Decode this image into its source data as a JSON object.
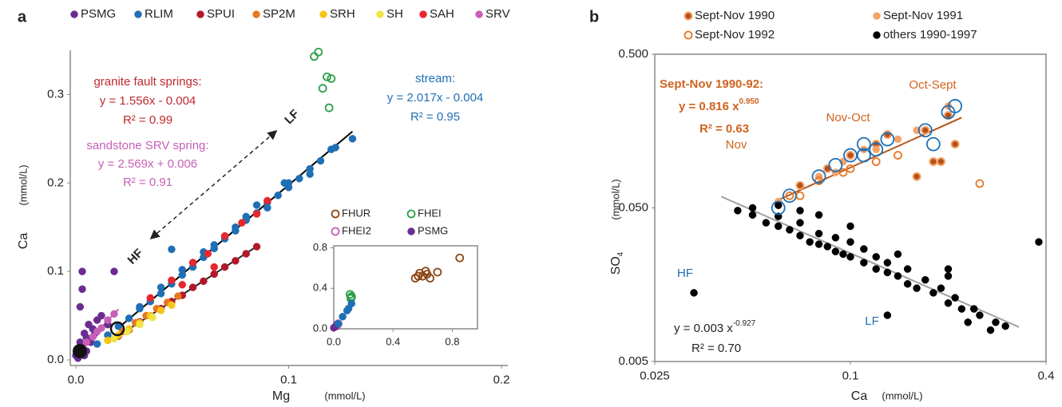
{
  "chart_data": [
    {
      "type": "scatter",
      "panel": "a",
      "x_label": "Mg",
      "x_unit": "(mmol/L)",
      "y_label": "Ca",
      "y_unit": "(mmol/L)",
      "xlim": [
        0,
        0.2
      ],
      "ylim": [
        0,
        0.35
      ],
      "xticks": [
        {
          "value": 0,
          "label": "0.0"
        },
        0.1,
        0.2
      ],
      "yticks": [
        {
          "value": 0,
          "label": "0.0"
        },
        0.1,
        0.2,
        0.3
      ],
      "series": [
        {
          "name": "PSMG",
          "color": "#6a2c91",
          "marker": "filled",
          "x": [
            0,
            0.001,
            0.002,
            0.003,
            0.004,
            0.005,
            0.006,
            0.008,
            0.01,
            0.012,
            0.002,
            0.003,
            0.001,
            0.005,
            0.007,
            0.004,
            0.009,
            0.015,
            0.018,
            0.003
          ],
          "values": [
            0.005,
            0.01,
            0.02,
            0.015,
            0.03,
            0.025,
            0.04,
            0.035,
            0.045,
            0.05,
            0.06,
            0.08,
            0.002,
            0.01,
            0.02,
            0.005,
            0.03,
            0.04,
            0.1,
            0.1
          ]
        },
        {
          "name": "RLIM",
          "color": "#1f6fb5",
          "marker": "filled",
          "x": [
            0.01,
            0.015,
            0.02,
            0.025,
            0.03,
            0.035,
            0.04,
            0.045,
            0.05,
            0.055,
            0.06,
            0.065,
            0.07,
            0.075,
            0.08,
            0.085,
            0.09,
            0.095,
            0.1,
            0.105,
            0.11,
            0.115,
            0.12,
            0.13,
            0.04,
            0.05,
            0.06,
            0.07,
            0.08,
            0.09,
            0.1,
            0.11,
            0.045,
            0.065,
            0.03,
            0.085,
            0.098,
            0.075,
            0.055,
            0.122
          ],
          "values": [
            0.018,
            0.028,
            0.038,
            0.047,
            0.058,
            0.066,
            0.075,
            0.086,
            0.096,
            0.105,
            0.116,
            0.126,
            0.137,
            0.146,
            0.158,
            0.166,
            0.178,
            0.186,
            0.195,
            0.205,
            0.216,
            0.225,
            0.238,
            0.25,
            0.082,
            0.102,
            0.122,
            0.14,
            0.162,
            0.172,
            0.2,
            0.21,
            0.125,
            0.13,
            0.06,
            0.175,
            0.2,
            0.15,
            0.11,
            0.24
          ]
        },
        {
          "name": "SPUI",
          "color": "#b2182b",
          "marker": "filled",
          "x": [
            0.02,
            0.025,
            0.03,
            0.035,
            0.04,
            0.045,
            0.05,
            0.055,
            0.06,
            0.065,
            0.07,
            0.075,
            0.08,
            0.085
          ],
          "values": [
            0.027,
            0.034,
            0.043,
            0.05,
            0.058,
            0.066,
            0.073,
            0.082,
            0.089,
            0.097,
            0.105,
            0.112,
            0.12,
            0.128
          ]
        },
        {
          "name": "SP2M",
          "color": "#e87722",
          "marker": "filled",
          "x": [
            0.022,
            0.028,
            0.033,
            0.038,
            0.043,
            0.048
          ],
          "values": [
            0.032,
            0.042,
            0.05,
            0.058,
            0.065,
            0.072
          ]
        },
        {
          "name": "SRH",
          "color": "#f5c518",
          "marker": "filled",
          "x": [
            0.015,
            0.02,
            0.025,
            0.03,
            0.035,
            0.04,
            0.045
          ],
          "values": [
            0.022,
            0.028,
            0.035,
            0.042,
            0.05,
            0.056,
            0.062
          ]
        },
        {
          "name": "SH",
          "color": "#f0e442",
          "marker": "filled",
          "x": [
            0.018,
            0.024,
            0.03,
            0.036
          ],
          "values": [
            0.024,
            0.032,
            0.04,
            0.048
          ]
        },
        {
          "name": "SAH",
          "color": "#e8262d",
          "marker": "filled",
          "x": [
            0.035,
            0.045,
            0.055,
            0.062,
            0.07,
            0.078,
            0.085,
            0.09,
            0.05,
            0.065
          ],
          "values": [
            0.07,
            0.09,
            0.11,
            0.12,
            0.14,
            0.155,
            0.165,
            0.18,
            0.085,
            0.105
          ]
        },
        {
          "name": "SRV",
          "color": "#c75fb6",
          "marker": "filled",
          "x": [
            0.005,
            0.008,
            0.01,
            0.012,
            0.015,
            0.018
          ],
          "values": [
            0.02,
            0.026,
            0.032,
            0.036,
            0.045,
            0.052
          ]
        },
        {
          "color": "#2e9e47",
          "marker": "open",
          "x": [
            0.112,
            0.114,
            0.116,
            0.118,
            0.12,
            0.119
          ],
          "values": [
            0.343,
            0.348,
            0.307,
            0.32,
            0.318,
            0.285
          ]
        }
      ],
      "fits": [
        {
          "kind": "linear",
          "slope": 2.017,
          "intercept": -0.004,
          "x": [
            0.02,
            0.13
          ],
          "color": "#000000"
        },
        {
          "kind": "linear",
          "slope": 1.556,
          "intercept": -0.004,
          "x": [
            0.02,
            0.085
          ],
          "color": "#222222"
        },
        {
          "kind": "linear",
          "slope": 2.569,
          "intercept": 0.006,
          "x": [
            0.005,
            0.02
          ],
          "color": "#c75fb6"
        }
      ],
      "annotations": [
        "granite fault springs:",
        "y = 1.556x - 0.004",
        "R² = 0.99",
        "stream:",
        "y = 2.017x - 0.004",
        "R² = 0.95",
        "sandstone SRV spring:",
        "y = 2.569x + 0.006",
        "R² = 0.91",
        "LF",
        "HF"
      ]
    },
    {
      "type": "scatter",
      "inset": true,
      "xlim": [
        0,
        0.97
      ],
      "ylim": [
        0,
        0.82
      ],
      "xticks": [
        {
          "value": 0,
          "label": "0.0"
        },
        0.4,
        0.8
      ],
      "yticks": [
        {
          "value": 0,
          "label": "0.0"
        },
        0.4,
        0.8
      ],
      "series": [
        {
          "name": "FHUR",
          "color": "#8b4513",
          "marker": "open",
          "x": [
            0.55,
            0.58,
            0.6,
            0.62,
            0.65,
            0.7,
            0.85,
            0.57,
            0.63
          ],
          "values": [
            0.5,
            0.55,
            0.52,
            0.57,
            0.5,
            0.56,
            0.7,
            0.52,
            0.54
          ]
        },
        {
          "name": "FHEI",
          "color": "#2e9e47",
          "marker": "open",
          "x": [
            0.11,
            0.12,
            0.115,
            0.12
          ],
          "values": [
            0.34,
            0.32,
            0.3,
            0.31
          ]
        },
        {
          "name": "FHEI2",
          "color": "#c75fb6",
          "marker": "open",
          "x": [
            0.02,
            0.03
          ],
          "values": [
            0.03,
            0.05
          ]
        },
        {
          "name": "PSMG",
          "color": "#6a2c91",
          "marker": "filled",
          "x": [
            0,
            0.01,
            0.02
          ],
          "values": [
            0.01,
            0.02,
            0.04
          ]
        },
        {
          "color": "#1f6fb5",
          "marker": "filled",
          "x": [
            0.03,
            0.06,
            0.09,
            0.12,
            0.1
          ],
          "values": [
            0.05,
            0.12,
            0.18,
            0.25,
            0.2
          ]
        }
      ]
    },
    {
      "type": "scatter",
      "panel": "b",
      "log_x": true,
      "log_y": true,
      "x_label": "Ca",
      "x_unit": "(mmol/L)",
      "y_label": "SO",
      "y_label_sub": "4",
      "y_unit": "(mmol/L)",
      "xlim": [
        0.025,
        0.4
      ],
      "ylim": [
        0.005,
        0.5
      ],
      "xticks": [
        0.025,
        0.1,
        0.4
      ],
      "yticks": [
        0.005,
        {
          "value": 0.05,
          "label": "0.050"
        },
        {
          "value": 0.5,
          "label": "0.500"
        }
      ],
      "series": [
        {
          "name": "Sept-Nov 1990",
          "color": "#b5501a",
          "marker": "filled-ringed",
          "x": [
            0.07,
            0.085,
            0.1,
            0.12,
            0.13,
            0.17,
            0.2,
            0.21,
            0.18,
            0.19,
            0.16
          ],
          "values": [
            0.07,
            0.09,
            0.11,
            0.13,
            0.15,
            0.16,
            0.2,
            0.13,
            0.1,
            0.1,
            0.08
          ]
        },
        {
          "name": "Sept-Nov 1991",
          "color": "#f4a46a",
          "marker": "filled",
          "x": [
            0.06,
            0.08,
            0.095,
            0.11,
            0.12,
            0.14,
            0.16,
            0.2,
            0.09
          ],
          "values": [
            0.055,
            0.08,
            0.1,
            0.12,
            0.12,
            0.14,
            0.16,
            0.23,
            0.085
          ]
        },
        {
          "name": "Sept-Nov 1992",
          "color": "#e87722",
          "marker": "open",
          "x": [
            0.065,
            0.07,
            0.08,
            0.1,
            0.12,
            0.14,
            0.25,
            0.095
          ],
          "values": [
            0.06,
            0.06,
            0.075,
            0.09,
            0.1,
            0.11,
            0.072,
            0.085
          ]
        },
        {
          "name": "others 1990-1997",
          "color": "#000000",
          "marker": "filled",
          "x": [
            0.045,
            0.05,
            0.055,
            0.06,
            0.065,
            0.07,
            0.075,
            0.08,
            0.085,
            0.09,
            0.095,
            0.1,
            0.11,
            0.12,
            0.13,
            0.14,
            0.15,
            0.16,
            0.18,
            0.2,
            0.22,
            0.25,
            0.28,
            0.3,
            0.05,
            0.06,
            0.07,
            0.08,
            0.09,
            0.1,
            0.11,
            0.12,
            0.13,
            0.15,
            0.17,
            0.19,
            0.21,
            0.24,
            0.06,
            0.07,
            0.08,
            0.1,
            0.14,
            0.2,
            0.033,
            0.38,
            0.13,
            0.2,
            0.23,
            0.27
          ],
          "values": [
            0.048,
            0.045,
            0.04,
            0.038,
            0.036,
            0.033,
            0.03,
            0.029,
            0.028,
            0.026,
            0.025,
            0.024,
            0.022,
            0.02,
            0.019,
            0.018,
            0.016,
            0.015,
            0.014,
            0.012,
            0.011,
            0.01,
            0.009,
            0.0085,
            0.05,
            0.044,
            0.04,
            0.034,
            0.032,
            0.03,
            0.027,
            0.024,
            0.022,
            0.02,
            0.017,
            0.015,
            0.013,
            0.011,
            0.052,
            0.048,
            0.045,
            0.038,
            0.025,
            0.018,
            0.014,
            0.03,
            0.01,
            0.02,
            0.009,
            0.008
          ]
        },
        {
          "color": "#1f6fb5",
          "marker": "ring",
          "x": [
            0.06,
            0.065,
            0.08,
            0.09,
            0.1,
            0.11,
            0.12,
            0.11,
            0.13,
            0.17,
            0.2,
            0.21,
            0.18
          ],
          "values": [
            0.05,
            0.06,
            0.08,
            0.095,
            0.11,
            0.13,
            0.12,
            0.11,
            0.14,
            0.16,
            0.21,
            0.23,
            0.13
          ]
        }
      ],
      "fits": [
        {
          "kind": "power",
          "coef": 0.816,
          "exponent": 0.95,
          "x": [
            0.06,
            0.22
          ],
          "color": "#b5561a"
        },
        {
          "kind": "power",
          "coef": 0.003,
          "exponent": -0.927,
          "x": [
            0.04,
            0.33
          ],
          "color": "#a0a0a0"
        }
      ],
      "annotations": [
        "Sept-Nov 1990-92:",
        "y = 0.816 x",
        "0.950",
        "R² = 0.63",
        "Oct-Sept",
        "Nov-Oct",
        "Nov",
        "HF",
        "LF",
        "y = 0.003 x",
        "-0.927",
        "R² = 0.70"
      ]
    }
  ]
}
